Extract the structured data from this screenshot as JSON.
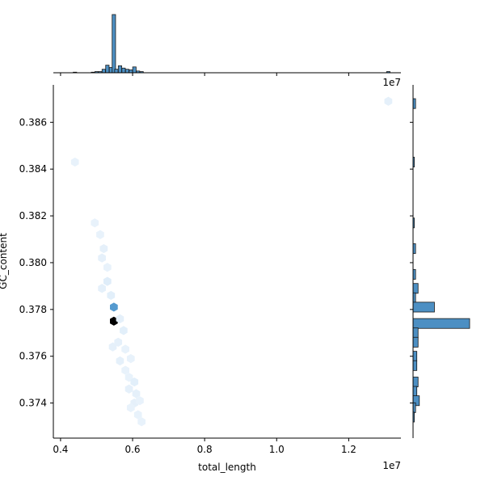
{
  "chart_data": {
    "type": "hexbin-joint",
    "xlabel": "total_length",
    "ylabel": "GC_content",
    "x_offset_label": "1e7",
    "x_scale_exponent": 7,
    "xlim": [
      0.38,
      1.345
    ],
    "ylim": [
      0.3725,
      0.3876
    ],
    "x_ticks": [
      0.4,
      0.6,
      0.8,
      1.0,
      1.2
    ],
    "x_tick_labels": [
      "0.4",
      "0.6",
      "0.8",
      "1.0",
      "1.2"
    ],
    "y_ticks": [
      0.374,
      0.376,
      0.378,
      0.38,
      0.382,
      0.384,
      0.386
    ],
    "y_tick_labels": [
      "0.374",
      "0.376",
      "0.378",
      "0.380",
      "0.382",
      "0.384",
      "0.386"
    ],
    "hexbins": [
      {
        "x": 0.548,
        "y": 0.3775,
        "count": 60
      },
      {
        "x": 0.548,
        "y": 0.3781,
        "count": 28
      },
      {
        "x": 1.31,
        "y": 0.3869,
        "count": 2
      },
      {
        "x": 0.44,
        "y": 0.3843,
        "count": 1
      },
      {
        "x": 0.495,
        "y": 0.3817,
        "count": 1
      },
      {
        "x": 0.51,
        "y": 0.3812,
        "count": 1
      },
      {
        "x": 0.52,
        "y": 0.3806,
        "count": 2
      },
      {
        "x": 0.515,
        "y": 0.3802,
        "count": 2
      },
      {
        "x": 0.53,
        "y": 0.3798,
        "count": 1
      },
      {
        "x": 0.53,
        "y": 0.3792,
        "count": 4
      },
      {
        "x": 0.515,
        "y": 0.3789,
        "count": 2
      },
      {
        "x": 0.54,
        "y": 0.3786,
        "count": 3
      },
      {
        "x": 0.565,
        "y": 0.3776,
        "count": 2
      },
      {
        "x": 0.575,
        "y": 0.3771,
        "count": 3
      },
      {
        "x": 0.56,
        "y": 0.3766,
        "count": 2
      },
      {
        "x": 0.545,
        "y": 0.3764,
        "count": 2
      },
      {
        "x": 0.58,
        "y": 0.3763,
        "count": 1
      },
      {
        "x": 0.565,
        "y": 0.3758,
        "count": 2
      },
      {
        "x": 0.595,
        "y": 0.3759,
        "count": 1
      },
      {
        "x": 0.58,
        "y": 0.3754,
        "count": 1
      },
      {
        "x": 0.59,
        "y": 0.3751,
        "count": 1
      },
      {
        "x": 0.605,
        "y": 0.3749,
        "count": 3
      },
      {
        "x": 0.59,
        "y": 0.3746,
        "count": 2
      },
      {
        "x": 0.61,
        "y": 0.3744,
        "count": 2
      },
      {
        "x": 0.605,
        "y": 0.374,
        "count": 2
      },
      {
        "x": 0.62,
        "y": 0.3741,
        "count": 1
      },
      {
        "x": 0.595,
        "y": 0.3738,
        "count": 1
      },
      {
        "x": 0.615,
        "y": 0.3735,
        "count": 1
      },
      {
        "x": 0.625,
        "y": 0.3732,
        "count": 1
      }
    ],
    "marginal_x": {
      "bins": [
        {
          "x": 0.44,
          "count": 1
        },
        {
          "x": 0.49,
          "count": 1
        },
        {
          "x": 0.5,
          "count": 2
        },
        {
          "x": 0.51,
          "count": 2
        },
        {
          "x": 0.52,
          "count": 6
        },
        {
          "x": 0.53,
          "count": 13
        },
        {
          "x": 0.54,
          "count": 9
        },
        {
          "x": 0.548,
          "count": 100
        },
        {
          "x": 0.555,
          "count": 6
        },
        {
          "x": 0.565,
          "count": 12
        },
        {
          "x": 0.575,
          "count": 8
        },
        {
          "x": 0.585,
          "count": 6
        },
        {
          "x": 0.595,
          "count": 5
        },
        {
          "x": 0.605,
          "count": 10
        },
        {
          "x": 0.615,
          "count": 3
        },
        {
          "x": 0.625,
          "count": 2
        },
        {
          "x": 1.31,
          "count": 2
        }
      ],
      "bin_width": 0.0095
    },
    "marginal_y": {
      "bins": [
        {
          "y": 0.3868,
          "count": 2
        },
        {
          "y": 0.3843,
          "count": 1
        },
        {
          "y": 0.3817,
          "count": 1
        },
        {
          "y": 0.3806,
          "count": 2
        },
        {
          "y": 0.3795,
          "count": 2
        },
        {
          "y": 0.3789,
          "count": 4
        },
        {
          "y": 0.3785,
          "count": 2
        },
        {
          "y": 0.3781,
          "count": 17
        },
        {
          "y": 0.3774,
          "count": 45
        },
        {
          "y": 0.377,
          "count": 4
        },
        {
          "y": 0.3766,
          "count": 4
        },
        {
          "y": 0.376,
          "count": 3
        },
        {
          "y": 0.3756,
          "count": 3
        },
        {
          "y": 0.3749,
          "count": 4
        },
        {
          "y": 0.3745,
          "count": 3
        },
        {
          "y": 0.3741,
          "count": 5
        },
        {
          "y": 0.3738,
          "count": 2
        },
        {
          "y": 0.3734,
          "count": 1
        }
      ],
      "bin_height": 0.00042
    }
  }
}
